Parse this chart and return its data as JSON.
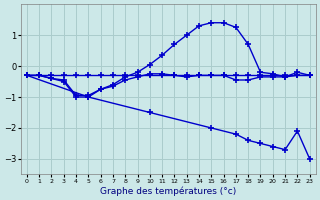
{
  "xlabel": "Graphe des températures (°c)",
  "background_color": "#cce8e8",
  "grid_color": "#aacccc",
  "line_color": "#0000cc",
  "xlim": [
    -0.5,
    23.5
  ],
  "ylim": [
    -3.5,
    2.0
  ],
  "xticks": [
    0,
    1,
    2,
    3,
    4,
    5,
    6,
    7,
    8,
    9,
    10,
    11,
    12,
    13,
    14,
    15,
    16,
    17,
    18,
    19,
    20,
    21,
    22,
    23
  ],
  "yticks": [
    -3,
    -2,
    -1,
    0,
    1
  ],
  "line_bell_x": [
    0,
    1,
    2,
    3,
    4,
    5,
    6,
    7,
    8,
    9,
    10,
    11,
    12,
    13,
    14,
    15,
    16,
    17,
    18,
    19,
    20,
    21,
    22,
    23
  ],
  "line_bell_y": [
    -0.3,
    -0.3,
    -0.4,
    -0.45,
    -0.95,
    -0.95,
    -0.75,
    -0.6,
    -0.35,
    -0.2,
    0.05,
    0.35,
    0.7,
    1.0,
    1.3,
    1.4,
    1.4,
    1.25,
    0.7,
    -0.2,
    -0.25,
    -0.35,
    -0.2,
    -0.3
  ],
  "line_flat_x": [
    0,
    1,
    2,
    3,
    4,
    5,
    6,
    7,
    8,
    9,
    10,
    11,
    12,
    13,
    14,
    15,
    16,
    17,
    18,
    19,
    20,
    21,
    22,
    23
  ],
  "line_flat_y": [
    -0.3,
    -0.3,
    -0.3,
    -0.3,
    -0.3,
    -0.3,
    -0.3,
    -0.3,
    -0.3,
    -0.3,
    -0.3,
    -0.3,
    -0.3,
    -0.3,
    -0.3,
    -0.3,
    -0.3,
    -0.3,
    -0.3,
    -0.3,
    -0.3,
    -0.3,
    -0.3,
    -0.3
  ],
  "line_dip_x": [
    0,
    1,
    2,
    3,
    4,
    5,
    6,
    7,
    8,
    9,
    10,
    11,
    12,
    13,
    14,
    15,
    16,
    17,
    18,
    19,
    20,
    21,
    22,
    23
  ],
  "line_dip_y": [
    -0.3,
    -0.3,
    -0.4,
    -0.5,
    -1.0,
    -1.0,
    -0.75,
    -0.65,
    -0.45,
    -0.35,
    -0.25,
    -0.25,
    -0.3,
    -0.35,
    -0.3,
    -0.3,
    -0.3,
    -0.45,
    -0.45,
    -0.35,
    -0.35,
    -0.35,
    -0.3,
    -0.3
  ],
  "line_diag_x": [
    0,
    5,
    10,
    15,
    17,
    18,
    19,
    20,
    21,
    22,
    23
  ],
  "line_diag_y": [
    -0.3,
    -1.0,
    -1.5,
    -2.0,
    -2.2,
    -2.4,
    -2.5,
    -2.6,
    -2.7,
    -2.1,
    -3.0
  ]
}
